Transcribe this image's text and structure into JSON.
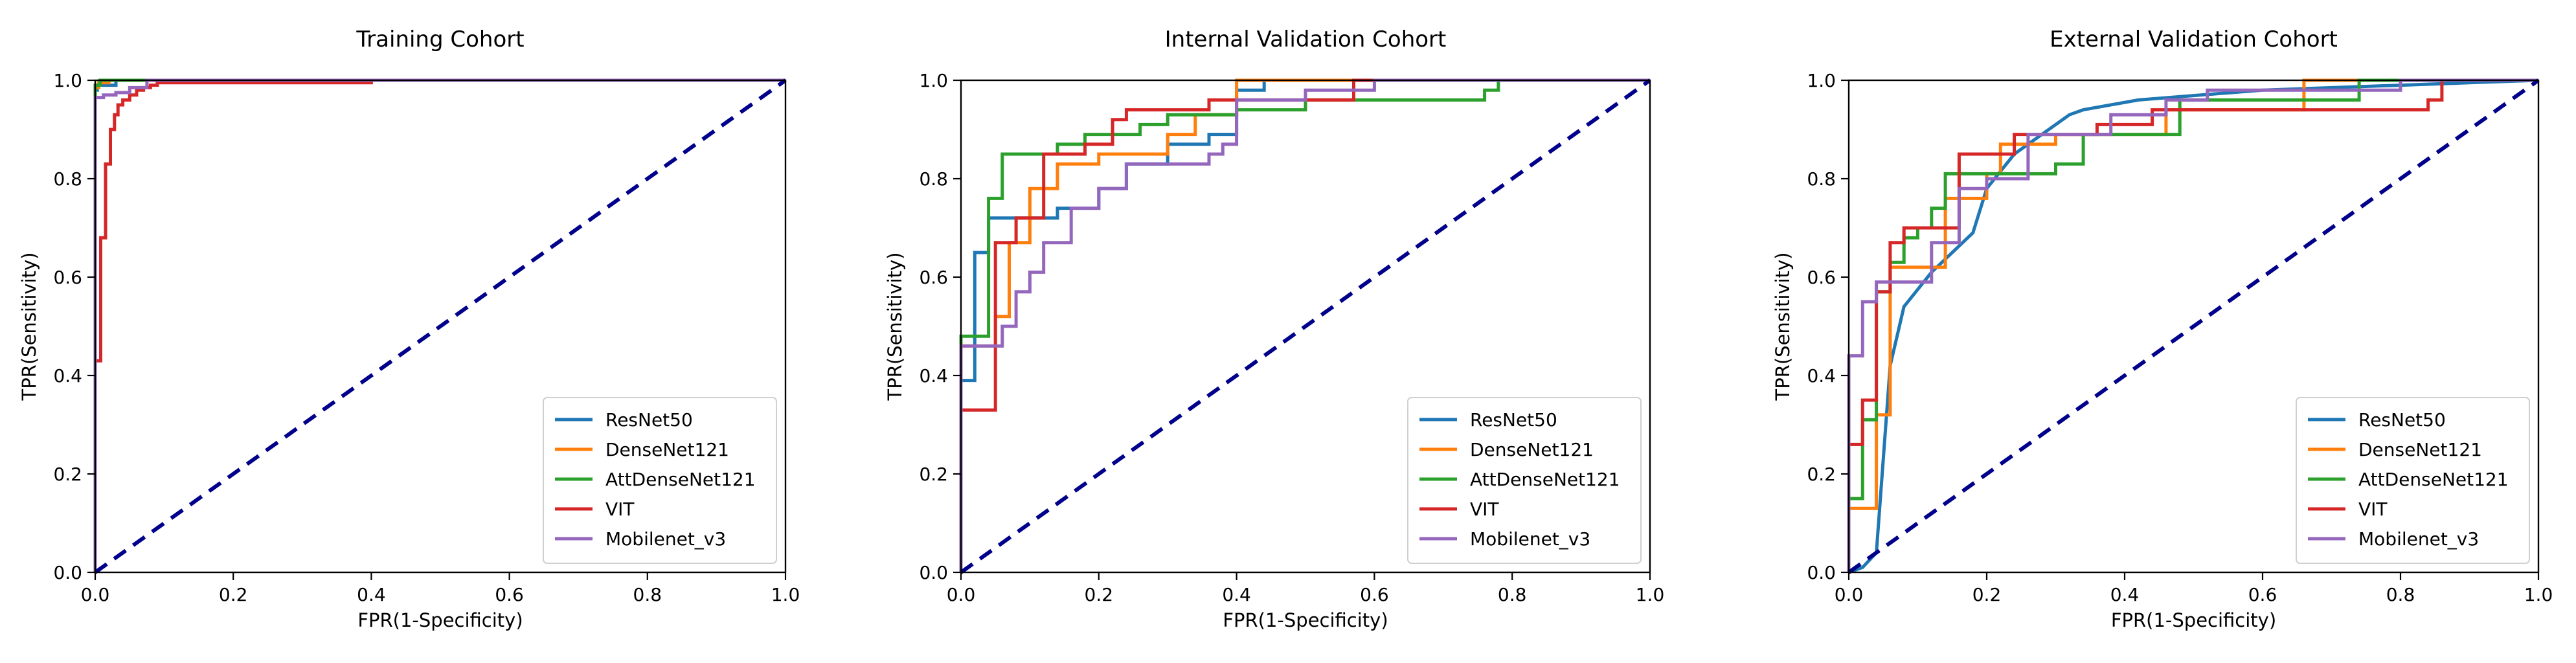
{
  "figure_colors": {
    "ResNet50": "#1f77b4",
    "DenseNet121": "#ff7f0e",
    "AttDenseNet121": "#2ca02c",
    "VIT": "#d62728",
    "Mobilenet_v3": "#9467bd",
    "chance": "#00008b"
  },
  "chart_data": [
    {
      "type": "line",
      "title": "Training Cohort",
      "xlabel": "FPR(1-Specificity)",
      "ylabel": "TPR(Sensitivity)",
      "xlim": [
        0,
        1
      ],
      "ylim": [
        0,
        1
      ],
      "xticks": [
        "0.0",
        "0.2",
        "0.4",
        "0.6",
        "0.8",
        "1.0"
      ],
      "yticks": [
        "0.0",
        "0.2",
        "0.4",
        "0.6",
        "0.8",
        "1.0"
      ],
      "legend_position": "lower-right",
      "diagonal": true,
      "series": [
        {
          "name": "ResNet50",
          "color_key": "ResNet50",
          "x": [
            0,
            0,
            0.003,
            0.003,
            0.03,
            0.03,
            1
          ],
          "y": [
            0,
            0.98,
            0.98,
            0.99,
            0.99,
            1.0,
            1.0
          ]
        },
        {
          "name": "DenseNet121",
          "color_key": "DenseNet121",
          "x": [
            0,
            0,
            0.005,
            0.005,
            0.02,
            0.02,
            1
          ],
          "y": [
            0,
            0.985,
            0.985,
            0.995,
            0.995,
            1.0,
            1.0
          ]
        },
        {
          "name": "AttDenseNet121",
          "color_key": "AttDenseNet121",
          "x": [
            0,
            0,
            0.007,
            0.007,
            1
          ],
          "y": [
            0,
            0.99,
            0.99,
            1.0,
            1.0
          ]
        },
        {
          "name": "VIT",
          "color_key": "VIT",
          "x": [
            0,
            0,
            0.008,
            0.008,
            0.015,
            0.015,
            0.022,
            0.022,
            0.028,
            0.028,
            0.033,
            0.033,
            0.04,
            0.04,
            0.05,
            0.05,
            0.06,
            0.06,
            0.07,
            0.07,
            0.08,
            0.08,
            0.09,
            0.09,
            0.4,
            0.4,
            1
          ],
          "y": [
            0,
            0.43,
            0.43,
            0.68,
            0.68,
            0.83,
            0.83,
            0.9,
            0.9,
            0.93,
            0.93,
            0.95,
            0.95,
            0.96,
            0.96,
            0.97,
            0.97,
            0.98,
            0.98,
            0.985,
            0.985,
            0.99,
            0.99,
            0.995,
            0.995,
            1.0,
            1.0
          ]
        },
        {
          "name": "Mobilenet_v3",
          "color_key": "Mobilenet_v3",
          "x": [
            0,
            0,
            0.012,
            0.012,
            0.03,
            0.03,
            0.05,
            0.05,
            0.075,
            0.075,
            1
          ],
          "y": [
            0,
            0.965,
            0.965,
            0.97,
            0.97,
            0.975,
            0.975,
            0.985,
            0.985,
            1.0,
            1.0
          ]
        }
      ]
    },
    {
      "type": "line",
      "title": "Internal Validation Cohort",
      "xlabel": "FPR(1-Specificity)",
      "ylabel": "TPR(Sensitivity)",
      "xlim": [
        0,
        1
      ],
      "ylim": [
        0,
        1
      ],
      "xticks": [
        "0.0",
        "0.2",
        "0.4",
        "0.6",
        "0.8",
        "1.0"
      ],
      "yticks": [
        "0.0",
        "0.2",
        "0.4",
        "0.6",
        "0.8",
        "1.0"
      ],
      "legend_position": "lower-right",
      "diagonal": true,
      "series": [
        {
          "name": "ResNet50",
          "color_key": "ResNet50",
          "x": [
            0,
            0,
            0.02,
            0.02,
            0.04,
            0.04,
            0.1,
            0.1,
            0.14,
            0.14,
            0.2,
            0.2,
            0.24,
            0.24,
            0.3,
            0.3,
            0.36,
            0.36,
            0.4,
            0.4,
            0.44,
            0.44,
            1
          ],
          "y": [
            0,
            0.39,
            0.39,
            0.65,
            0.65,
            0.72,
            0.72,
            0.72,
            0.72,
            0.74,
            0.74,
            0.78,
            0.78,
            0.83,
            0.83,
            0.87,
            0.87,
            0.89,
            0.89,
            0.98,
            0.98,
            1.0,
            1.0
          ]
        },
        {
          "name": "DenseNet121",
          "color_key": "DenseNet121",
          "x": [
            0,
            0,
            0.05,
            0.05,
            0.07,
            0.07,
            0.1,
            0.1,
            0.14,
            0.14,
            0.2,
            0.2,
            0.3,
            0.3,
            0.34,
            0.34,
            0.4,
            0.4,
            0.6,
            0.6,
            1
          ],
          "y": [
            0,
            0.46,
            0.46,
            0.52,
            0.52,
            0.67,
            0.67,
            0.78,
            0.78,
            0.83,
            0.83,
            0.85,
            0.85,
            0.89,
            0.89,
            0.93,
            0.93,
            1.0,
            1.0,
            1.0,
            1.0
          ]
        },
        {
          "name": "AttDenseNet121",
          "color_key": "AttDenseNet121",
          "x": [
            0,
            0,
            0.04,
            0.04,
            0.06,
            0.06,
            0.14,
            0.14,
            0.18,
            0.18,
            0.22,
            0.22,
            0.26,
            0.26,
            0.3,
            0.3,
            0.4,
            0.4,
            0.5,
            0.5,
            0.76,
            0.76,
            0.78,
            0.78,
            1
          ],
          "y": [
            0,
            0.48,
            0.48,
            0.76,
            0.76,
            0.85,
            0.85,
            0.87,
            0.87,
            0.89,
            0.89,
            0.89,
            0.89,
            0.91,
            0.91,
            0.93,
            0.93,
            0.94,
            0.94,
            0.96,
            0.96,
            0.98,
            0.98,
            1.0,
            1.0
          ]
        },
        {
          "name": "VIT",
          "color_key": "VIT",
          "x": [
            0,
            0,
            0.05,
            0.05,
            0.08,
            0.08,
            0.12,
            0.12,
            0.16,
            0.16,
            0.18,
            0.18,
            0.22,
            0.22,
            0.24,
            0.24,
            0.3,
            0.3,
            0.36,
            0.36,
            0.4,
            0.4,
            0.57,
            0.57,
            1
          ],
          "y": [
            0,
            0.33,
            0.33,
            0.67,
            0.67,
            0.72,
            0.72,
            0.85,
            0.85,
            0.85,
            0.85,
            0.87,
            0.87,
            0.92,
            0.92,
            0.94,
            0.94,
            0.94,
            0.94,
            0.96,
            0.96,
            0.96,
            0.96,
            1.0,
            1.0
          ]
        },
        {
          "name": "Mobilenet_v3",
          "color_key": "Mobilenet_v3",
          "x": [
            0,
            0,
            0.06,
            0.06,
            0.08,
            0.08,
            0.1,
            0.1,
            0.12,
            0.12,
            0.16,
            0.16,
            0.2,
            0.2,
            0.24,
            0.24,
            0.32,
            0.32,
            0.36,
            0.36,
            0.38,
            0.38,
            0.4,
            0.4,
            0.5,
            0.5,
            0.6,
            0.6,
            1
          ],
          "y": [
            0,
            0.46,
            0.46,
            0.5,
            0.5,
            0.57,
            0.57,
            0.61,
            0.61,
            0.67,
            0.67,
            0.74,
            0.74,
            0.78,
            0.78,
            0.83,
            0.83,
            0.83,
            0.83,
            0.85,
            0.85,
            0.87,
            0.87,
            0.96,
            0.96,
            0.98,
            0.98,
            1.0,
            1.0
          ]
        }
      ]
    },
    {
      "type": "line",
      "title": "External Validation Cohort",
      "xlabel": "FPR(1-Specificity)",
      "ylabel": "TPR(Sensitivity)",
      "xlim": [
        0,
        1
      ],
      "ylim": [
        0,
        1
      ],
      "xticks": [
        "0.0",
        "0.2",
        "0.4",
        "0.6",
        "0.8",
        "1.0"
      ],
      "yticks": [
        "0.0",
        "0.2",
        "0.4",
        "0.6",
        "0.8",
        "1.0"
      ],
      "legend_position": "lower-right",
      "diagonal": true,
      "series": [
        {
          "name": "ResNet50",
          "color_key": "ResNet50",
          "x": [
            0,
            0.02,
            0.02,
            0.04,
            0.04,
            0.06,
            0.06,
            0.08,
            0.08,
            0.12,
            0.12,
            0.18,
            0.18,
            0.2,
            0.2,
            0.24,
            0.24,
            0.32,
            0.32,
            0.34,
            0.34,
            0.42,
            0.42,
            0.6,
            0.6,
            1
          ],
          "y": [
            0,
            0.01,
            0.01,
            0.04,
            0.04,
            0.42,
            0.42,
            0.54,
            0.54,
            0.61,
            0.61,
            0.69,
            0.69,
            0.78,
            0.78,
            0.85,
            0.85,
            0.93,
            0.93,
            0.94,
            0.94,
            0.96,
            0.96,
            0.98,
            0.98,
            1.0
          ]
        },
        {
          "name": "DenseNet121",
          "color_key": "DenseNet121",
          "x": [
            0,
            0,
            0.04,
            0.04,
            0.06,
            0.06,
            0.14,
            0.14,
            0.16,
            0.16,
            0.2,
            0.2,
            0.22,
            0.22,
            0.28,
            0.28,
            0.3,
            0.3,
            0.46,
            0.46,
            0.66,
            0.66,
            1
          ],
          "y": [
            0,
            0.13,
            0.13,
            0.32,
            0.32,
            0.62,
            0.62,
            0.76,
            0.76,
            0.76,
            0.76,
            0.81,
            0.81,
            0.87,
            0.87,
            0.87,
            0.87,
            0.89,
            0.89,
            0.94,
            0.94,
            1.0,
            1.0
          ]
        },
        {
          "name": "AttDenseNet121",
          "color_key": "AttDenseNet121",
          "x": [
            0,
            0,
            0.02,
            0.02,
            0.04,
            0.04,
            0.06,
            0.06,
            0.08,
            0.08,
            0.1,
            0.1,
            0.12,
            0.12,
            0.14,
            0.14,
            0.2,
            0.2,
            0.3,
            0.3,
            0.34,
            0.34,
            0.48,
            0.48,
            0.74,
            0.74,
            1
          ],
          "y": [
            0,
            0.15,
            0.15,
            0.31,
            0.31,
            0.57,
            0.57,
            0.63,
            0.63,
            0.68,
            0.68,
            0.7,
            0.7,
            0.74,
            0.74,
            0.81,
            0.81,
            0.81,
            0.81,
            0.83,
            0.83,
            0.89,
            0.89,
            0.96,
            0.96,
            1.0,
            1.0
          ]
        },
        {
          "name": "VIT",
          "color_key": "VIT",
          "x": [
            0,
            0,
            0.02,
            0.02,
            0.04,
            0.04,
            0.06,
            0.06,
            0.08,
            0.08,
            0.16,
            0.16,
            0.22,
            0.22,
            0.24,
            0.24,
            0.36,
            0.36,
            0.44,
            0.44,
            0.84,
            0.84,
            0.86,
            0.86,
            1
          ],
          "y": [
            0,
            0.26,
            0.26,
            0.35,
            0.35,
            0.57,
            0.57,
            0.67,
            0.67,
            0.7,
            0.7,
            0.85,
            0.85,
            0.85,
            0.85,
            0.89,
            0.89,
            0.91,
            0.91,
            0.94,
            0.94,
            0.96,
            0.96,
            1.0,
            1.0
          ]
        },
        {
          "name": "Mobilenet_v3",
          "color_key": "Mobilenet_v3",
          "x": [
            0,
            0,
            0.02,
            0.02,
            0.04,
            0.04,
            0.08,
            0.08,
            0.12,
            0.12,
            0.16,
            0.16,
            0.2,
            0.2,
            0.26,
            0.26,
            0.38,
            0.38,
            0.46,
            0.46,
            0.52,
            0.52,
            0.8,
            0.8,
            1
          ],
          "y": [
            0,
            0.44,
            0.44,
            0.55,
            0.55,
            0.59,
            0.59,
            0.59,
            0.59,
            0.67,
            0.67,
            0.78,
            0.78,
            0.8,
            0.8,
            0.89,
            0.89,
            0.93,
            0.93,
            0.96,
            0.96,
            0.98,
            0.98,
            1.0,
            1.0
          ]
        }
      ]
    }
  ]
}
